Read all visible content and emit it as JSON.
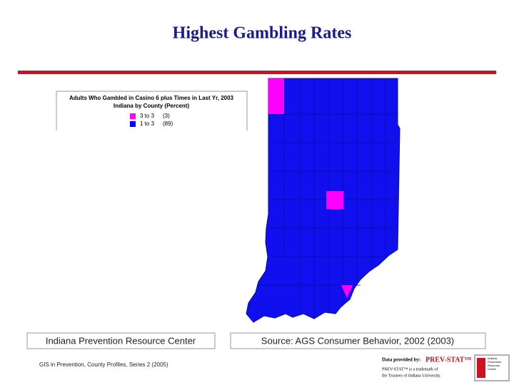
{
  "header": {
    "title": "Highest Gambling Rates"
  },
  "legend": {
    "title": "Adults Who Gambled in Casino 6 plus Times in Last Yr, 2003",
    "subtitle": "Indiana by County (Percent)",
    "items": [
      {
        "label": "3 to 3",
        "count": "(3)",
        "color": "#ff00ff"
      },
      {
        "label": "1 to 3",
        "count": "(89)",
        "color": "#0000ff"
      }
    ]
  },
  "footer": {
    "left": "Indiana Prevention Resource Center",
    "right": "Source:  AGS Consumer Behavior, 2002 (2003)",
    "series": "GIS in Prevention, County Profiles, Series 2 (2005)",
    "logo": {
      "provided": "Data provided by:",
      "brand": "PREV-STAT™",
      "trademark1": "PREV-STAT™ is a trademark of",
      "trademark2": "the Trustees of Indiana University.",
      "badge": "Indiana Prevention Resource Center"
    }
  }
}
